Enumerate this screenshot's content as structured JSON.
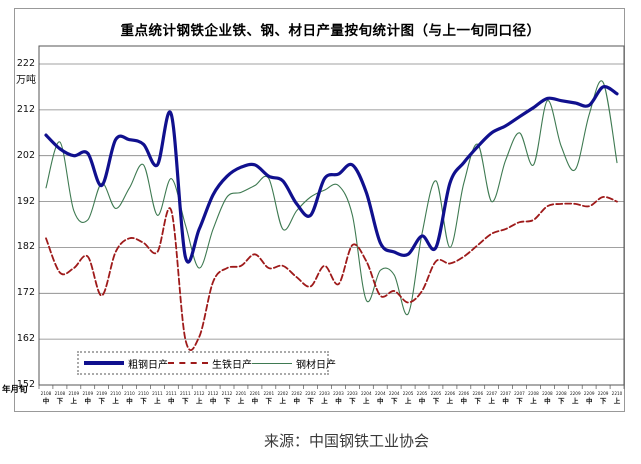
{
  "title": "重点统计钢铁企业铁、钢、材日产量按旬统计图（与上一旬同口径）",
  "source_caption": "来源：中国钢铁工业协会",
  "y_axis": {
    "unit_label": "万吨",
    "corner_label": "年月旬",
    "ticks": [
      222,
      212,
      202,
      192,
      182,
      172,
      162,
      152
    ]
  },
  "chart_data": {
    "type": "line",
    "title": "重点统计钢铁企业铁、钢、材日产量按旬统计图（与上一旬同口径）",
    "ylabel": "万吨",
    "xlabel": "年月旬",
    "ylim": [
      152,
      222
    ],
    "grid": true,
    "legend_position": "bottom-inside",
    "categories": [
      {
        "ym": "2108",
        "xun": "中"
      },
      {
        "ym": "2108",
        "xun": "下"
      },
      {
        "ym": "2109",
        "xun": "上"
      },
      {
        "ym": "2109",
        "xun": "中"
      },
      {
        "ym": "2109",
        "xun": "下"
      },
      {
        "ym": "2110",
        "xun": "上"
      },
      {
        "ym": "2110",
        "xun": "中"
      },
      {
        "ym": "2110",
        "xun": "下"
      },
      {
        "ym": "2111",
        "xun": "上"
      },
      {
        "ym": "2111",
        "xun": "中"
      },
      {
        "ym": "2111",
        "xun": "下"
      },
      {
        "ym": "2112",
        "xun": "上"
      },
      {
        "ym": "2112",
        "xun": "中"
      },
      {
        "ym": "2112",
        "xun": "下"
      },
      {
        "ym": "2201",
        "xun": "上"
      },
      {
        "ym": "2201",
        "xun": "中"
      },
      {
        "ym": "2201",
        "xun": "下"
      },
      {
        "ym": "2202",
        "xun": "上"
      },
      {
        "ym": "2202",
        "xun": "中"
      },
      {
        "ym": "2202",
        "xun": "下"
      },
      {
        "ym": "2203",
        "xun": "上"
      },
      {
        "ym": "2203",
        "xun": "中"
      },
      {
        "ym": "2203",
        "xun": "下"
      },
      {
        "ym": "2204",
        "xun": "上"
      },
      {
        "ym": "2204",
        "xun": "中"
      },
      {
        "ym": "2204",
        "xun": "下"
      },
      {
        "ym": "2205",
        "xun": "上"
      },
      {
        "ym": "2205",
        "xun": "中"
      },
      {
        "ym": "2205",
        "xun": "下"
      },
      {
        "ym": "2206",
        "xun": "上"
      },
      {
        "ym": "2206",
        "xun": "中"
      },
      {
        "ym": "2206",
        "xun": "下"
      },
      {
        "ym": "2207",
        "xun": "上"
      },
      {
        "ym": "2207",
        "xun": "中"
      },
      {
        "ym": "2207",
        "xun": "下"
      },
      {
        "ym": "2208",
        "xun": "上"
      },
      {
        "ym": "2208",
        "xun": "中"
      },
      {
        "ym": "2208",
        "xun": "下"
      },
      {
        "ym": "2209",
        "xun": "上"
      },
      {
        "ym": "2209",
        "xun": "中"
      },
      {
        "ym": "2209",
        "xun": "下"
      },
      {
        "ym": "2210",
        "xun": "上"
      }
    ],
    "series": [
      {
        "name": "crude-steel-daily-output",
        "label": "粗钢日产",
        "color": "#10108e",
        "style": "solid-thick",
        "values": [
          206.5,
          203.5,
          202,
          202.5,
          195.5,
          205.5,
          205.5,
          204.5,
          200,
          211,
          180,
          186,
          193.5,
          197.5,
          199.5,
          200,
          197.5,
          196.5,
          191.5,
          189,
          197,
          198,
          200,
          194,
          183,
          181,
          180.5,
          184.5,
          182,
          196,
          200.5,
          204,
          207,
          208.5,
          210.5,
          212.5,
          214.5,
          214,
          213.5,
          213,
          217,
          215.5
        ]
      },
      {
        "name": "pig-iron-daily-output",
        "label": "生铁日产",
        "color": "#9e1a1a",
        "style": "dashed",
        "values": [
          184,
          176.5,
          177.5,
          180,
          171.5,
          181,
          184,
          183,
          181,
          190,
          162,
          162.5,
          174.5,
          177.5,
          178,
          180.5,
          177.5,
          178,
          175.5,
          173.5,
          178,
          174,
          182.5,
          179,
          171.5,
          172.5,
          170,
          172.5,
          179,
          178.5,
          180,
          182.5,
          185,
          186,
          187.5,
          188,
          191,
          191.5,
          191.5,
          191,
          193,
          192
        ]
      },
      {
        "name": "steel-products-daily-output",
        "label": "钢材日产",
        "color": "#3f7a52",
        "style": "solid-thin",
        "values": [
          195,
          205,
          190,
          188,
          196,
          190.5,
          195,
          200,
          189,
          197,
          187,
          177.5,
          186,
          193,
          194,
          195.5,
          197,
          186,
          190,
          193,
          194.5,
          195.5,
          189,
          170.5,
          177,
          176,
          167.5,
          185,
          196.5,
          182,
          196,
          204.5,
          192,
          201,
          207,
          200,
          214,
          204,
          199,
          211,
          218,
          200.5
        ]
      }
    ]
  }
}
